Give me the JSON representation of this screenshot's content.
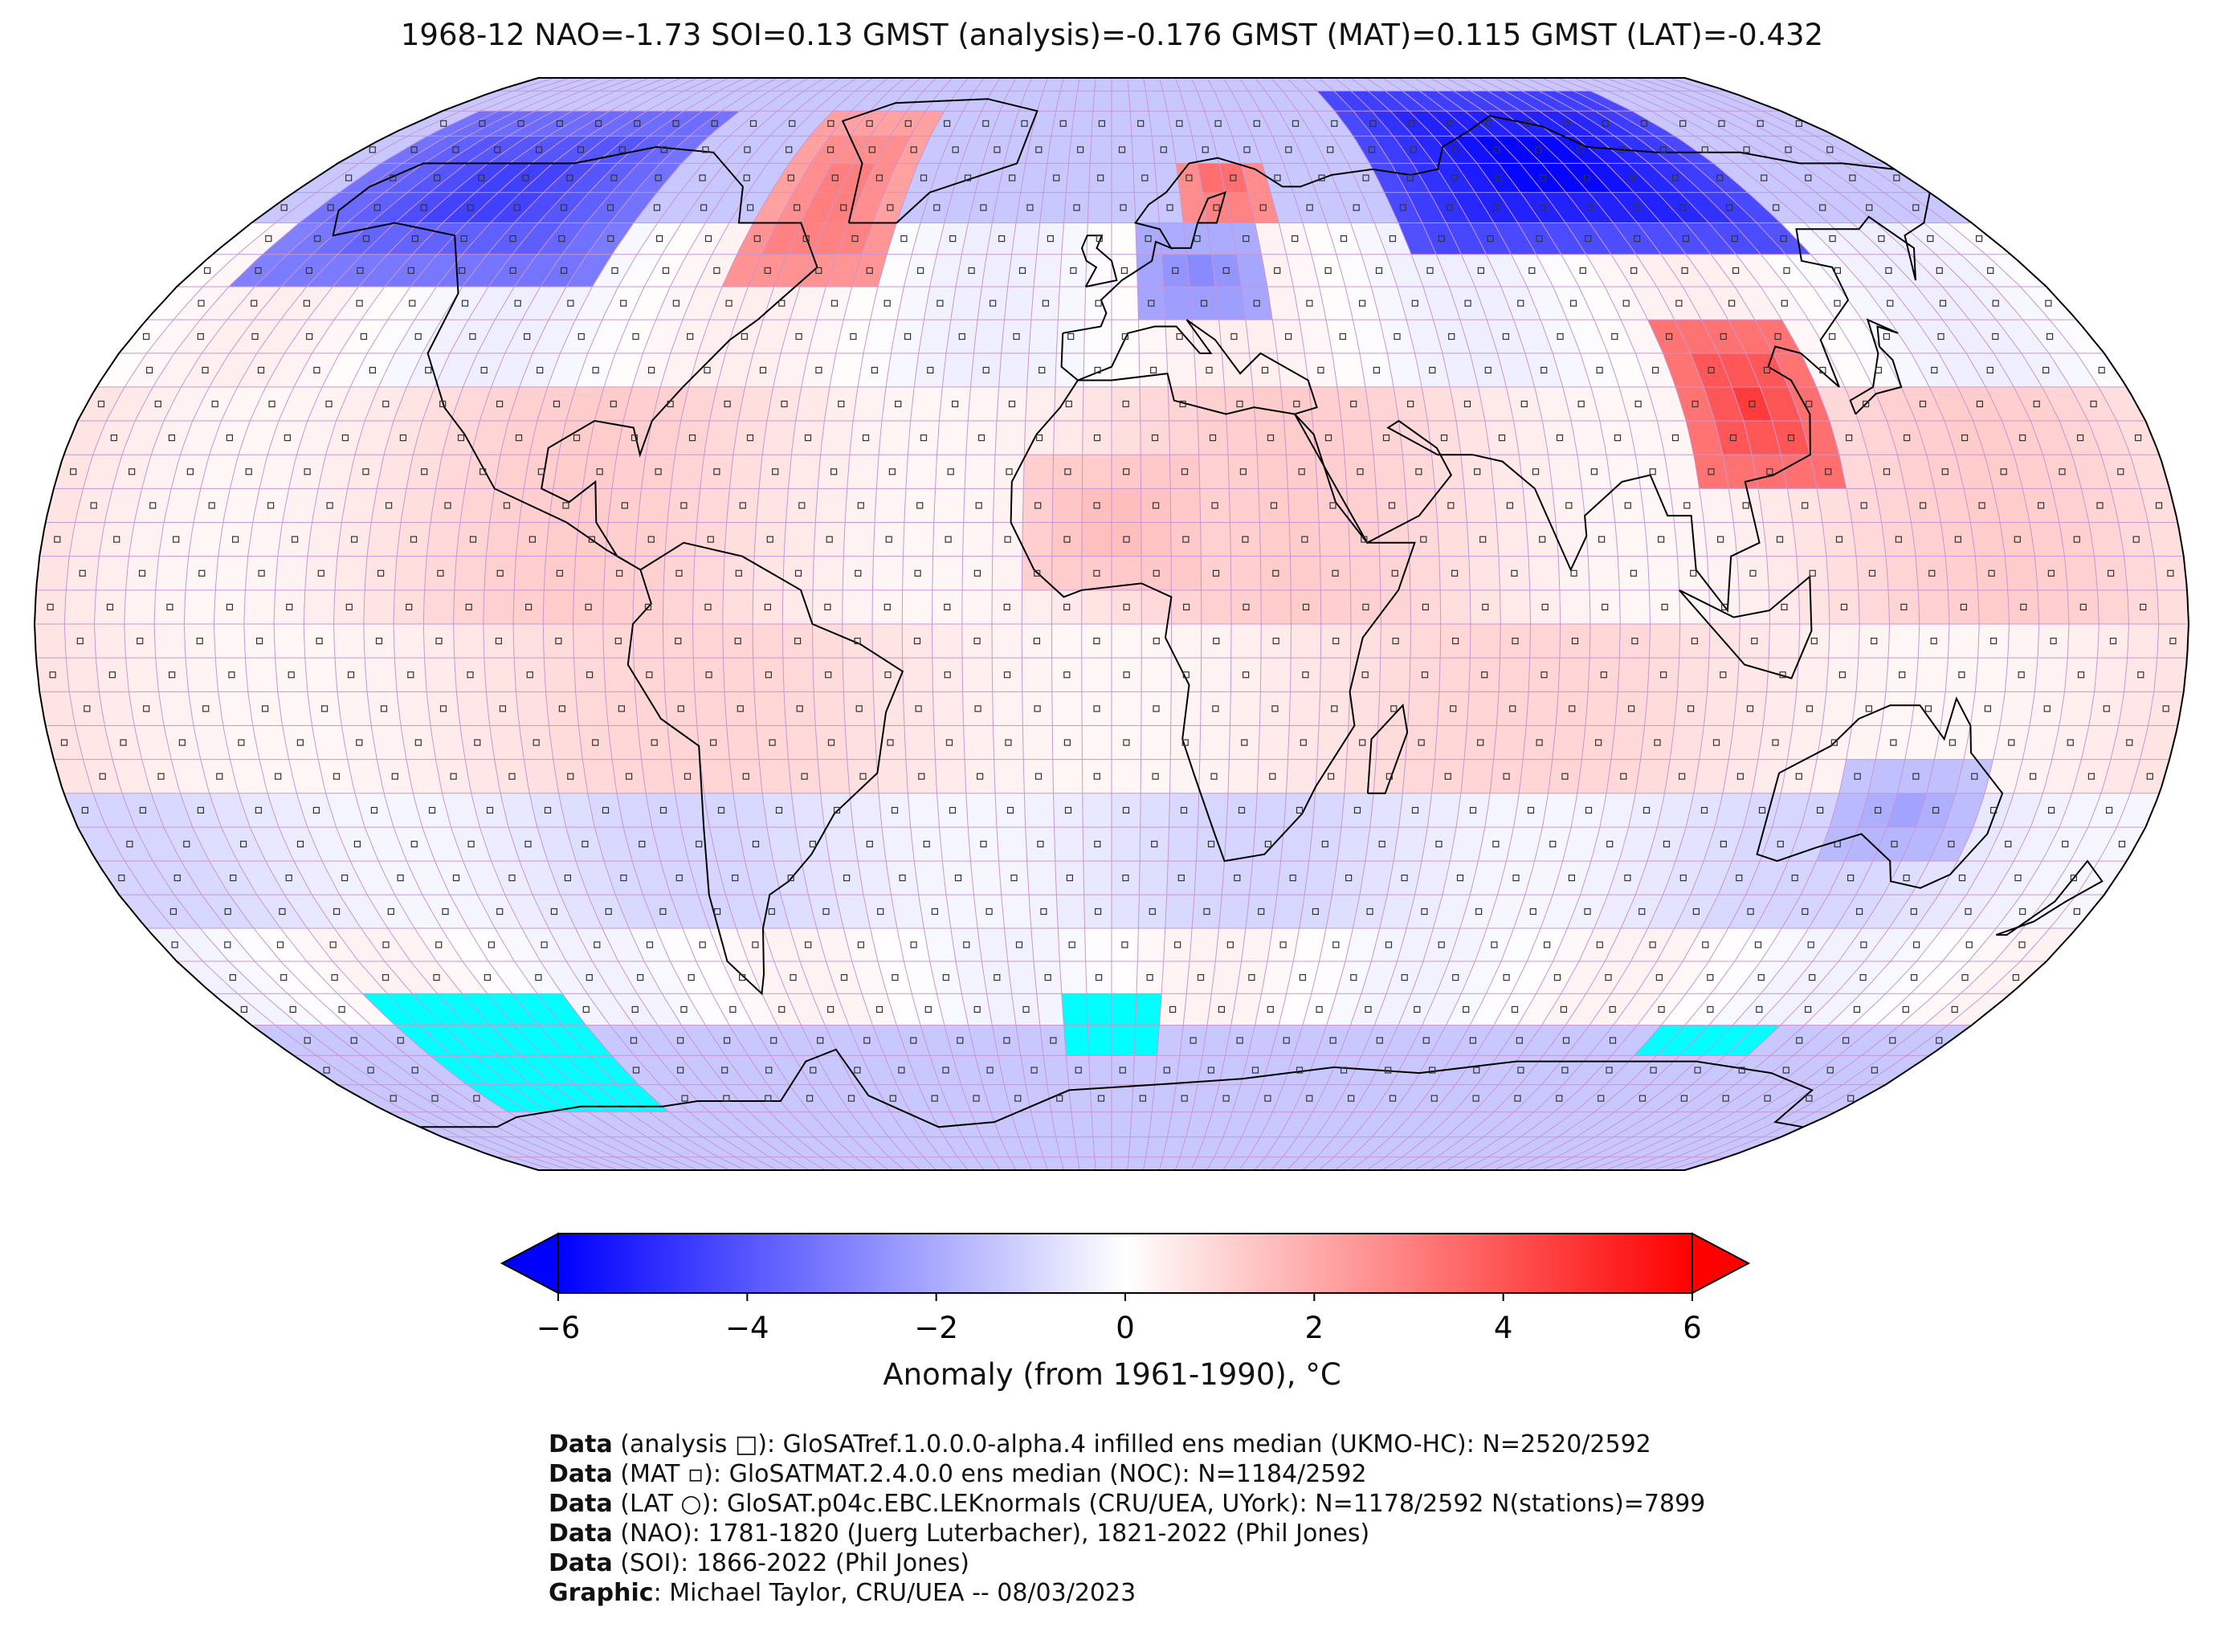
{
  "title": "1968-12 NAO=-1.73 SOI=0.13 GMST (analysis)=-0.176 GMST (MAT)=0.115 GMST (LAT)=-0.432",
  "colorbar": {
    "label": "Anomaly (from 1961-1990), °C",
    "ticks": [
      "−6",
      "−4",
      "−2",
      "0",
      "2",
      "4",
      "6"
    ],
    "tick_values": [
      -6,
      -4,
      -2,
      0,
      2,
      4,
      6
    ],
    "range": [
      -6,
      6
    ],
    "extend": "both",
    "colormap": "bwr",
    "colors": {
      "cold": "#0000ff",
      "neutral": "#ffffff",
      "warm": "#ff0000",
      "missing": "#00ffff",
      "grid": "#c896d2"
    }
  },
  "map": {
    "projection": "Robinson",
    "gridlines": true,
    "grid_resolution_deg": 5,
    "anomaly_regions": [
      {
        "region": "Siberia",
        "lon": [
          60,
          140
        ],
        "lat": [
          55,
          85
        ],
        "anomaly": -6.0
      },
      {
        "region": "Alaska / Western Canada",
        "lon": [
          -170,
          -100
        ],
        "lat": [
          50,
          80
        ],
        "anomaly": -4.5
      },
      {
        "region": "Greenland / Eastern Canada",
        "lon": [
          -75,
          -45
        ],
        "lat": [
          50,
          80
        ],
        "anomaly": 3.5
      },
      {
        "region": "Scandinavia",
        "lon": [
          15,
          35
        ],
        "lat": [
          60,
          72
        ],
        "anomaly": 4.0
      },
      {
        "region": "Central Europe",
        "lon": [
          5,
          30
        ],
        "lat": [
          45,
          58
        ],
        "anomaly": -3.0
      },
      {
        "region": "East Asia",
        "lon": [
          100,
          125
        ],
        "lat": [
          20,
          45
        ],
        "anomaly": 4.5
      },
      {
        "region": "Australia",
        "lon": [
          125,
          150
        ],
        "lat": [
          -35,
          -20
        ],
        "anomaly": -2.0
      },
      {
        "region": "West Africa",
        "lon": [
          -15,
          15
        ],
        "lat": [
          5,
          25
        ],
        "anomaly": 1.5
      }
    ],
    "missing_regions": [
      {
        "lon": [
          -150,
          -110
        ],
        "lat": [
          -75,
          -55
        ]
      },
      {
        "lon": [
          -10,
          10
        ],
        "lat": [
          -65,
          -55
        ]
      },
      {
        "lon": [
          115,
          140
        ],
        "lat": [
          -65,
          -60
        ]
      }
    ]
  },
  "credits": [
    {
      "key": "Data",
      "text": " (analysis □): GloSATref.1.0.0.0-alpha.4 infilled ens median (UKMO-HC): N=2520/2592"
    },
    {
      "key": "Data",
      "text": " (MAT ▫): GloSATMAT.2.4.0.0 ens median (NOC): N=1184/2592"
    },
    {
      "key": "Data",
      "text": " (LAT ○): GloSAT.p04c.EBC.LEKnormals (CRU/UEA, UYork): N=1178/2592 N(stations)=7899"
    },
    {
      "key": "Data",
      "text": " (NAO): 1781-1820 (Juerg Luterbacher), 1821-2022 (Phil Jones)"
    },
    {
      "key": "Data",
      "text": " (SOI): 1866-2022 (Phil Jones)"
    },
    {
      "key": "Graphic",
      "text": ": Michael Taylor, CRU/UEA -- 08/03/2023"
    }
  ]
}
